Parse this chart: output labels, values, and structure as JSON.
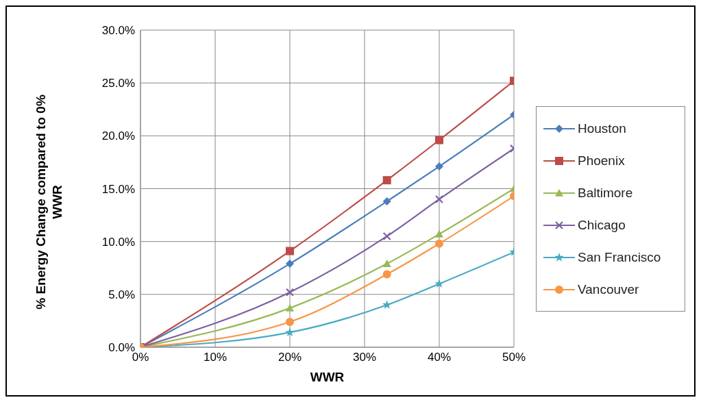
{
  "chart_data": {
    "type": "line",
    "xlabel": "WWR",
    "ylabel": "% Energy Change compared to 0% WWR",
    "x": [
      0,
      20,
      33,
      40,
      50
    ],
    "series": [
      {
        "name": "Houston",
        "color": "#4a7ebb",
        "marker": "diamond",
        "values": [
          0,
          7.9,
          13.8,
          17.1,
          22.0
        ]
      },
      {
        "name": "Phoenix",
        "color": "#be4b48",
        "marker": "square",
        "values": [
          0,
          9.1,
          15.8,
          19.6,
          25.2
        ]
      },
      {
        "name": "Baltimore",
        "color": "#98b954",
        "marker": "triangle",
        "values": [
          0,
          3.7,
          7.9,
          10.7,
          15.0
        ]
      },
      {
        "name": "Chicago",
        "color": "#7d60a0",
        "marker": "cross",
        "values": [
          0,
          5.2,
          10.5,
          14.0,
          18.8
        ]
      },
      {
        "name": "San Francisco",
        "color": "#46aac5",
        "marker": "star",
        "values": [
          0,
          1.4,
          4.0,
          6.0,
          9.0
        ]
      },
      {
        "name": "Vancouver",
        "color": "#f79646",
        "marker": "circle",
        "values": [
          0,
          2.4,
          6.9,
          9.8,
          14.3
        ]
      }
    ],
    "xlim": [
      0,
      50
    ],
    "xticks": [
      {
        "value": 0,
        "label": "0%"
      },
      {
        "value": 10,
        "label": "10%"
      },
      {
        "value": 20,
        "label": "20%"
      },
      {
        "value": 30,
        "label": "30%"
      },
      {
        "value": 40,
        "label": "40%"
      },
      {
        "value": 50,
        "label": "50%"
      }
    ],
    "ylim": [
      0,
      30
    ],
    "yticks": [
      {
        "value": 0,
        "label": "0.0%"
      },
      {
        "value": 5,
        "label": "5.0%"
      },
      {
        "value": 10,
        "label": "10.0%"
      },
      {
        "value": 15,
        "label": "15.0%"
      },
      {
        "value": 20,
        "label": "20.0%"
      },
      {
        "value": 25,
        "label": "25.0%"
      },
      {
        "value": 30,
        "label": "30.0%"
      }
    ],
    "grid": true,
    "legend": "right",
    "line_style": "solid"
  }
}
